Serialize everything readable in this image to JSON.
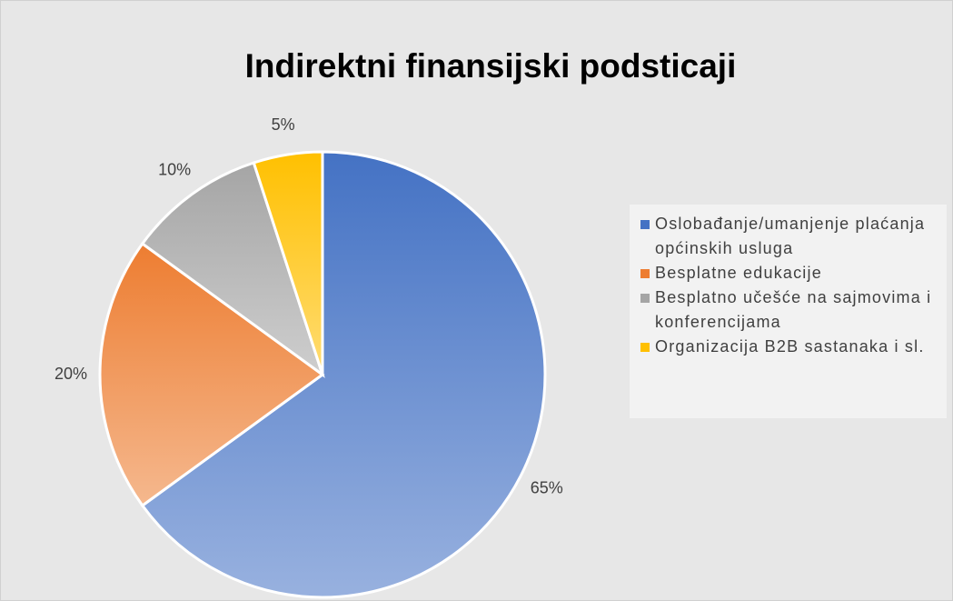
{
  "chart_data": {
    "type": "pie",
    "title": "Indirektni finansijski podsticaji",
    "categories": [
      "Oslobađanje/umanjenje plaćanja općinskih usluga",
      "Besplatne edukacije",
      "Besplatno učešće na sajmovima i konferencijama",
      "Organizacija B2B sastanaka i sl."
    ],
    "values": [
      65,
      20,
      10,
      5
    ],
    "value_labels": [
      "65%",
      "20%",
      "10%",
      "5%"
    ],
    "colors": [
      "#4472c4",
      "#ed7d31",
      "#a5a5a5",
      "#ffc000"
    ],
    "legend": "right"
  }
}
